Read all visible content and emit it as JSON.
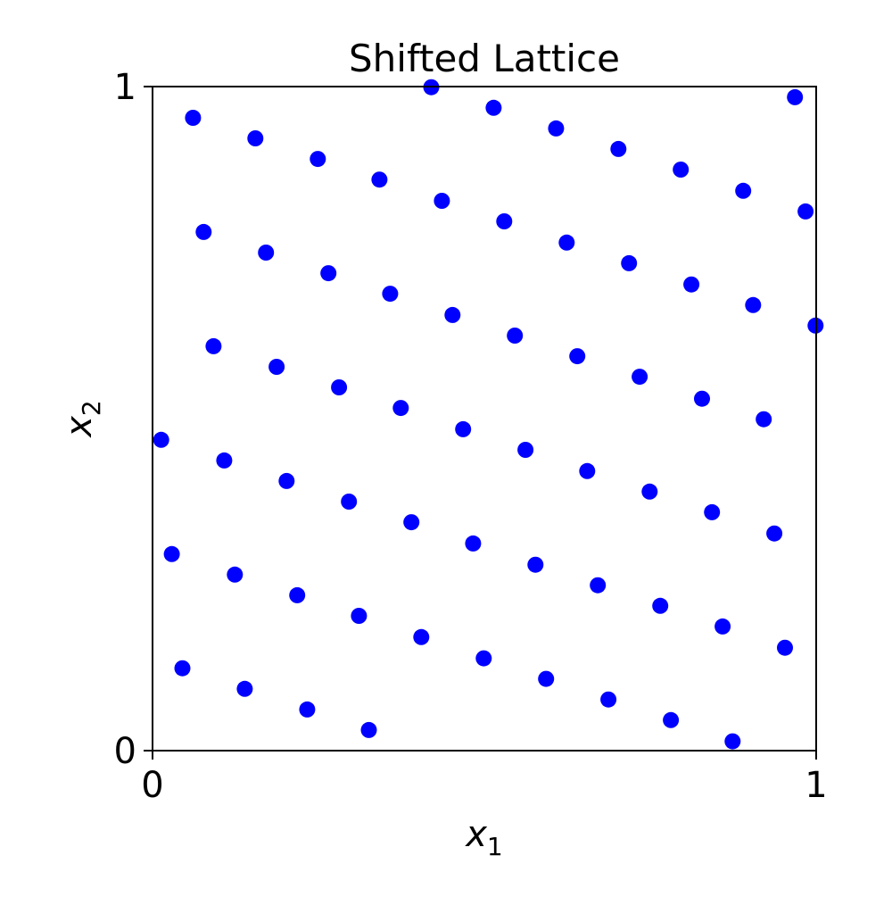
{
  "chart_data": {
    "type": "scatter",
    "title": "Shifted Lattice",
    "xlabel": "x",
    "xlabel_subscript": "1",
    "ylabel": "x",
    "ylabel_subscript": "2",
    "xlim": [
      0,
      1
    ],
    "ylim": [
      0,
      1
    ],
    "xticks": [
      0,
      1
    ],
    "xtick_labels": [
      "0",
      "1"
    ],
    "yticks": [
      0,
      1
    ],
    "ytick_labels": [
      "0",
      "1"
    ],
    "grid": false,
    "marker_color": "#0000ff",
    "points": [
      [
        0.013,
        0.468
      ],
      [
        0.029,
        0.296
      ],
      [
        0.045,
        0.124
      ],
      [
        0.061,
        0.953
      ],
      [
        0.077,
        0.781
      ],
      [
        0.092,
        0.609
      ],
      [
        0.108,
        0.437
      ],
      [
        0.124,
        0.265
      ],
      [
        0.139,
        0.093
      ],
      [
        0.155,
        0.922
      ],
      [
        0.171,
        0.75
      ],
      [
        0.187,
        0.578
      ],
      [
        0.202,
        0.406
      ],
      [
        0.218,
        0.234
      ],
      [
        0.233,
        0.062
      ],
      [
        0.249,
        0.891
      ],
      [
        0.265,
        0.719
      ],
      [
        0.281,
        0.547
      ],
      [
        0.296,
        0.375
      ],
      [
        0.311,
        0.203
      ],
      [
        0.326,
        0.031
      ],
      [
        0.342,
        0.86
      ],
      [
        0.358,
        0.688
      ],
      [
        0.374,
        0.516
      ],
      [
        0.39,
        0.344
      ],
      [
        0.405,
        0.171
      ],
      [
        0.42,
        0.999
      ],
      [
        0.436,
        0.828
      ],
      [
        0.452,
        0.656
      ],
      [
        0.468,
        0.484
      ],
      [
        0.483,
        0.312
      ],
      [
        0.499,
        0.139
      ],
      [
        0.514,
        0.968
      ],
      [
        0.53,
        0.797
      ],
      [
        0.546,
        0.625
      ],
      [
        0.562,
        0.453
      ],
      [
        0.577,
        0.28
      ],
      [
        0.593,
        0.108
      ],
      [
        0.608,
        0.937
      ],
      [
        0.624,
        0.765
      ],
      [
        0.64,
        0.594
      ],
      [
        0.655,
        0.421
      ],
      [
        0.671,
        0.249
      ],
      [
        0.687,
        0.077
      ],
      [
        0.702,
        0.906
      ],
      [
        0.718,
        0.734
      ],
      [
        0.734,
        0.563
      ],
      [
        0.749,
        0.39
      ],
      [
        0.765,
        0.218
      ],
      [
        0.781,
        0.046
      ],
      [
        0.796,
        0.875
      ],
      [
        0.812,
        0.702
      ],
      [
        0.828,
        0.53
      ],
      [
        0.843,
        0.359
      ],
      [
        0.859,
        0.187
      ],
      [
        0.874,
        0.014
      ],
      [
        0.89,
        0.843
      ],
      [
        0.905,
        0.671
      ],
      [
        0.921,
        0.499
      ],
      [
        0.937,
        0.327
      ],
      [
        0.953,
        0.155
      ],
      [
        0.968,
        0.984
      ],
      [
        0.984,
        0.812
      ],
      [
        0.999,
        0.64
      ]
    ]
  }
}
